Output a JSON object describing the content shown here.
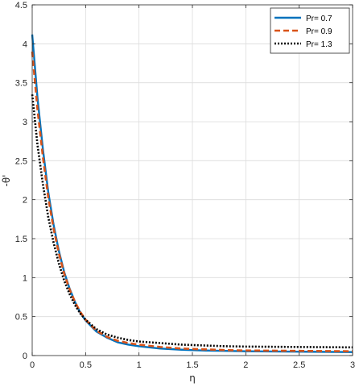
{
  "chart_data": {
    "type": "line",
    "xlabel": "η",
    "ylabel": "-θ'",
    "xlim": [
      0,
      3
    ],
    "ylim": [
      0,
      4.5
    ],
    "xticks": [
      0,
      0.5,
      1,
      1.5,
      2,
      2.5,
      3
    ],
    "yticks": [
      0,
      0.5,
      1,
      1.5,
      2,
      2.5,
      3,
      3.5,
      4,
      4.5
    ],
    "xtick_labels": [
      "0",
      "0.5",
      "1",
      "1.5",
      "2",
      "2.5",
      "3"
    ],
    "ytick_labels": [
      "0",
      "0.5",
      "1",
      "1.5",
      "2",
      "2.5",
      "3",
      "3.5",
      "4",
      "4.5"
    ],
    "grid": true,
    "legend_position": "top-right",
    "series": [
      {
        "name": "Pr= 0.7",
        "color": "#0072BD",
        "style": "solid",
        "x": [
          0,
          0.05,
          0.1,
          0.15,
          0.2,
          0.25,
          0.3,
          0.35,
          0.4,
          0.45,
          0.5,
          0.6,
          0.7,
          0.8,
          0.9,
          1.0,
          1.2,
          1.4,
          1.6,
          1.8,
          2.0,
          2.5,
          3.0
        ],
        "y": [
          4.12,
          3.3,
          2.65,
          2.1,
          1.68,
          1.34,
          1.07,
          0.86,
          0.69,
          0.55,
          0.45,
          0.31,
          0.23,
          0.17,
          0.14,
          0.12,
          0.09,
          0.075,
          0.065,
          0.06,
          0.055,
          0.05,
          0.045
        ]
      },
      {
        "name": "Pr= 0.9",
        "color": "#D95319",
        "style": "dashed",
        "x": [
          0,
          0.05,
          0.1,
          0.15,
          0.2,
          0.25,
          0.3,
          0.35,
          0.4,
          0.45,
          0.5,
          0.6,
          0.7,
          0.8,
          0.9,
          1.0,
          1.2,
          1.4,
          1.6,
          1.8,
          2.0,
          2.5,
          3.0
        ],
        "y": [
          3.9,
          3.15,
          2.55,
          2.03,
          1.63,
          1.31,
          1.05,
          0.85,
          0.69,
          0.56,
          0.46,
          0.32,
          0.24,
          0.19,
          0.16,
          0.14,
          0.11,
          0.09,
          0.08,
          0.07,
          0.065,
          0.06,
          0.055
        ]
      },
      {
        "name": "Pr= 1.3",
        "color": "#000000",
        "style": "dotted",
        "x": [
          0,
          0.05,
          0.1,
          0.15,
          0.2,
          0.25,
          0.3,
          0.35,
          0.4,
          0.45,
          0.5,
          0.6,
          0.7,
          0.8,
          0.9,
          1.0,
          1.2,
          1.4,
          1.6,
          1.8,
          2.0,
          2.5,
          3.0
        ],
        "y": [
          3.35,
          2.7,
          2.2,
          1.78,
          1.45,
          1.18,
          0.96,
          0.79,
          0.65,
          0.54,
          0.46,
          0.34,
          0.27,
          0.23,
          0.2,
          0.18,
          0.16,
          0.14,
          0.13,
          0.12,
          0.115,
          0.11,
          0.105
        ]
      }
    ]
  }
}
